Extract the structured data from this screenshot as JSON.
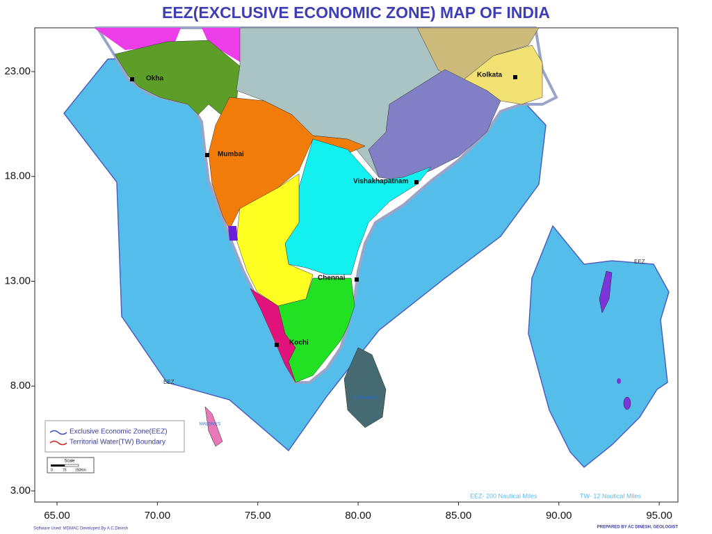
{
  "title": "EEZ(EXCLUSIVE ECONOMIC ZONE) MAP OF INDIA",
  "axes": {
    "xticks": [
      {
        "value": 65,
        "label": "65.00"
      },
      {
        "value": 70,
        "label": "70.00"
      },
      {
        "value": 75,
        "label": "75.00"
      },
      {
        "value": 80,
        "label": "80.00"
      },
      {
        "value": 85,
        "label": "85.00"
      },
      {
        "value": 90,
        "label": "90.00"
      },
      {
        "value": 95,
        "label": "95.00"
      }
    ],
    "yticks": [
      {
        "value": 23,
        "label": "23.00"
      },
      {
        "value": 18,
        "label": "18.00"
      },
      {
        "value": 13,
        "label": "13.00"
      },
      {
        "value": 8,
        "label": "8.00"
      },
      {
        "value": 3,
        "label": "3.00"
      }
    ]
  },
  "cities": [
    "Okha",
    "Mumbai",
    "Kolkata",
    "Vishakhapatnam",
    "Chennai",
    "Kochi"
  ],
  "labels": {
    "eez_west": "EEZ",
    "eez_east": "EEZ",
    "maldives": "MALDIVES",
    "sri_lanka": "SRI LANKA"
  },
  "legend": [
    "Exclusive Economic Zone(EEZ)",
    "Territorial Water(TW) Boundary"
  ],
  "scale": {
    "title": "Scale",
    "ticks": [
      "0",
      "75",
      "150Km"
    ]
  },
  "notes": [
    "EEZ- 200 Nautical Miles",
    "TW- 12 Nautical Miles"
  ],
  "footer": {
    "software": "Software Used: MDMAC Developed By A.C.Dinesh",
    "prepared": "PREPARED BY AC DINESH, GEOLOGIST"
  }
}
